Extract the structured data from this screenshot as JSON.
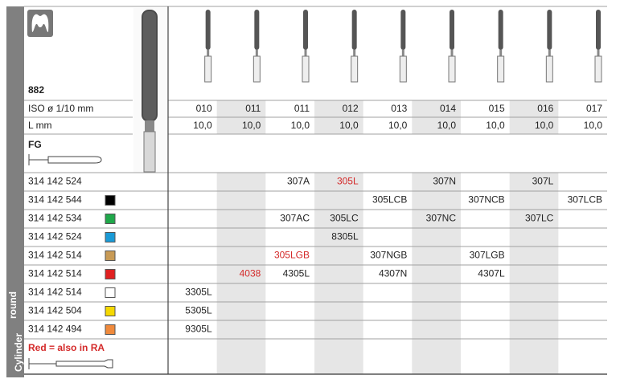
{
  "header": {
    "number": "882",
    "iso_label": "ISO ø 1/10 mm",
    "length_label": "L mm",
    "shank_type": "FG",
    "side_label": [
      "Cylinder",
      "round"
    ]
  },
  "columns": [
    {
      "iso": "010",
      "length": "10,0",
      "shaded": false
    },
    {
      "iso": "011",
      "length": "10,0",
      "shaded": true
    },
    {
      "iso": "011",
      "length": "10,0",
      "shaded": false
    },
    {
      "iso": "012",
      "length": "10,0",
      "shaded": true
    },
    {
      "iso": "013",
      "length": "10,0",
      "shaded": false
    },
    {
      "iso": "014",
      "length": "10,0",
      "shaded": true
    },
    {
      "iso": "015",
      "length": "10,0",
      "shaded": false
    },
    {
      "iso": "016",
      "length": "10,0",
      "shaded": true
    },
    {
      "iso": "017",
      "length": "10,0",
      "shaded": false
    }
  ],
  "rows": [
    {
      "ref": "314 142 524",
      "cells": [
        null,
        null,
        "307A",
        {
          "text": "305L",
          "color": "#d42a2a"
        },
        null,
        "307N",
        null,
        "307L",
        null
      ]
    },
    {
      "ref": "314 142 544",
      "swatch": "#000000",
      "cells": [
        null,
        null,
        null,
        null,
        "305LCB",
        null,
        "307NCB",
        null,
        "307LCB"
      ]
    },
    {
      "ref": "314 142 534",
      "swatch": "#1fa84a",
      "cells": [
        null,
        null,
        "307AC",
        "305LC",
        null,
        "307NC",
        null,
        "307LC",
        null
      ]
    },
    {
      "ref": "314 142 524",
      "swatch": "#1a9ad6",
      "cells": [
        null,
        null,
        null,
        "8305L",
        null,
        null,
        null,
        null,
        null
      ]
    },
    {
      "ref": "314 142 514",
      "swatch": "#c89a55",
      "cells": [
        null,
        null,
        {
          "text": "305LGB",
          "color": "#d42a2a"
        },
        null,
        "307NGB",
        null,
        "307LGB",
        null,
        null
      ]
    },
    {
      "ref": "314 142 514",
      "swatch": "#e02020",
      "cells": [
        null,
        {
          "text": "4038",
          "color": "#d42a2a"
        },
        "4305L",
        null,
        "4307N",
        null,
        "4307L",
        null,
        null
      ]
    },
    {
      "ref": "314 142 514",
      "swatch": "#ffffff",
      "cells": [
        "3305L",
        null,
        null,
        null,
        null,
        null,
        null,
        null,
        null
      ]
    },
    {
      "ref": "314 142 504",
      "swatch": "#f5d800",
      "cells": [
        "5305L",
        null,
        null,
        null,
        null,
        null,
        null,
        null,
        null
      ]
    },
    {
      "ref": "314 142 494",
      "swatch": "#f08a3c",
      "cells": [
        "9305L",
        null,
        null,
        null,
        null,
        null,
        null,
        null,
        null
      ]
    }
  ],
  "footnote": {
    "text": "Red = also in RA",
    "color": "#d42a2a"
  }
}
